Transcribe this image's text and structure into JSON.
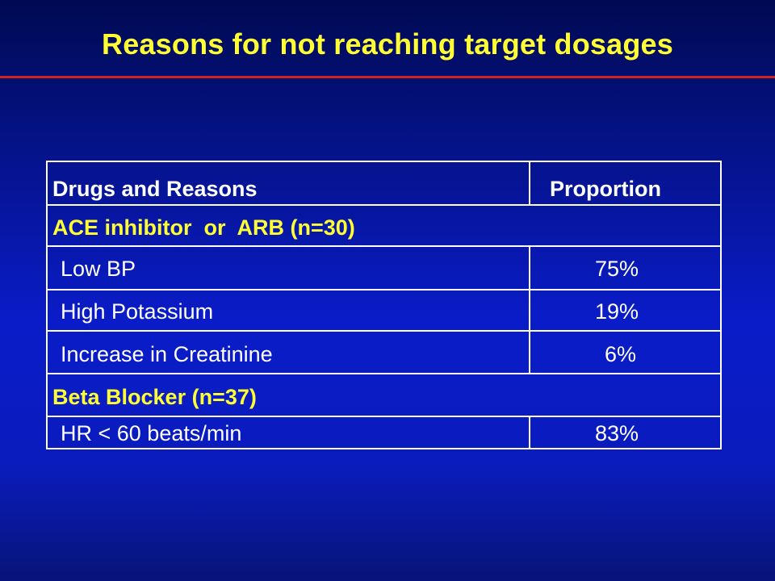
{
  "slide": {
    "title": "Reasons for not reaching target dosages"
  },
  "table": {
    "header": {
      "reason": "Drugs and Reasons",
      "proportion": "Proportion"
    },
    "groups": [
      {
        "label": "ACE inhibitor  or  ARB (n=30)",
        "rows": [
          {
            "reason": "Low BP",
            "proportion": "75%"
          },
          {
            "reason": "High Potassium",
            "proportion": "19%"
          },
          {
            "reason": "Increase in Creatinine",
            "proportion": "6%"
          }
        ]
      },
      {
        "label": "Beta Blocker (n=37)",
        "rows": [
          {
            "reason": "HR < 60 beats/min",
            "proportion": "83%"
          }
        ]
      }
    ]
  },
  "colors": {
    "background": "#0a1cc8",
    "title": "#ffff33",
    "rule": "#d42020",
    "group_label": "#ffff33",
    "text": "#ffffff"
  }
}
